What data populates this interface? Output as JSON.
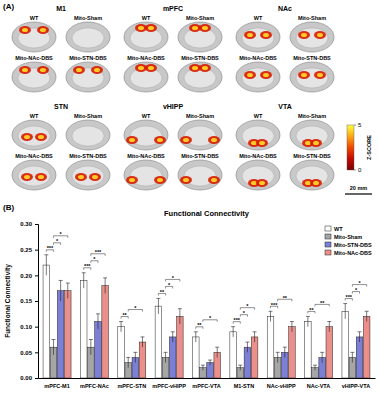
{
  "panel_a": {
    "label": "(A)",
    "regions": [
      "M1",
      "mPFC",
      "NAc",
      "STN",
      "vHIPP",
      "VTA"
    ],
    "groups": [
      "WT",
      "Mito-Sham",
      "Mito-NAc-DBS",
      "Mito-STN-DBS"
    ],
    "scale_bar": "20 mm",
    "colorbar": {
      "title": "Z-SCORE",
      "range": [
        0,
        5
      ],
      "ticks": [
        0,
        5
      ]
    }
  },
  "panel_b": {
    "label": "(B)"
  },
  "chart_data": {
    "type": "bar",
    "title": "Functional Connectivity",
    "y_label": "Functional Connectivity",
    "categories": [
      "mPFC-M1",
      "mPFC-NAc",
      "mPFC-STN",
      "mPFC-vHIPP",
      "mPFC-VTA",
      "M1-STN",
      "NAc-vHIPP",
      "NAc-VTA",
      "vHIPP-VTA"
    ],
    "series": [
      {
        "name": "WT",
        "color": "#ffffff",
        "values": [
          0.22,
          0.19,
          0.1,
          0.14,
          0.08,
          0.09,
          0.12,
          0.11,
          0.13
        ],
        "errors": [
          0.02,
          0.015,
          0.01,
          0.015,
          0.01,
          0.01,
          0.01,
          0.01,
          0.015
        ]
      },
      {
        "name": "Mito-Sham",
        "color": "#a6a6a6",
        "values": [
          0.06,
          0.06,
          0.03,
          0.04,
          0.02,
          0.02,
          0.04,
          0.02,
          0.04
        ],
        "errors": [
          0.015,
          0.015,
          0.01,
          0.01,
          0.005,
          0.005,
          0.01,
          0.005,
          0.01
        ]
      },
      {
        "name": "Mito-STN-DBS",
        "color": "#7b7fd6",
        "values": [
          0.17,
          0.11,
          0.04,
          0.08,
          0.03,
          0.06,
          0.05,
          0.04,
          0.08
        ],
        "errors": [
          0.02,
          0.015,
          0.01,
          0.01,
          0.005,
          0.01,
          0.01,
          0.01,
          0.01
        ]
      },
      {
        "name": "Mito-NAc-DBS",
        "color": "#ea8f8a",
        "values": [
          0.17,
          0.18,
          0.07,
          0.12,
          0.05,
          0.08,
          0.1,
          0.1,
          0.12
        ],
        "errors": [
          0.015,
          0.015,
          0.01,
          0.015,
          0.01,
          0.01,
          0.01,
          0.01,
          0.01
        ]
      }
    ],
    "ylim": [
      0,
      0.3
    ],
    "yticks": [
      {
        "value": 0,
        "label": "0.00"
      },
      {
        "value": 0.05,
        "label": "0.05"
      },
      {
        "value": 0.1,
        "label": "0.10"
      },
      {
        "value": 0.15,
        "label": "0.15"
      },
      {
        "value": 0.2,
        "label": "0.20"
      },
      {
        "value": 0.25,
        "label": "0.25"
      },
      {
        "value": 0.3,
        "label": "0.30"
      }
    ],
    "legend": "upper right",
    "annotations": [
      {
        "category": "mPFC-M1",
        "groups": [
          "WT",
          "Mito-Sham"
        ],
        "label": "***"
      },
      {
        "category": "mPFC-M1",
        "groups": [
          "Mito-Sham",
          "Mito-STN-DBS"
        ],
        "label": "*"
      },
      {
        "category": "mPFC-M1",
        "groups": [
          "Mito-Sham",
          "Mito-NAc-DBS"
        ],
        "label": "*"
      },
      {
        "category": "mPFC-NAc",
        "groups": [
          "WT",
          "Mito-Sham"
        ],
        "label": "***"
      },
      {
        "category": "mPFC-NAc",
        "groups": [
          "Mito-Sham",
          "Mito-STN-DBS"
        ],
        "label": "*"
      },
      {
        "category": "mPFC-NAc",
        "groups": [
          "Mito-Sham",
          "Mito-NAc-DBS"
        ],
        "label": "***"
      },
      {
        "category": "mPFC-STN",
        "groups": [
          "WT",
          "Mito-Sham"
        ],
        "label": "**"
      },
      {
        "category": "mPFC-STN",
        "groups": [
          "Mito-Sham",
          "Mito-NAc-DBS"
        ],
        "label": "*"
      },
      {
        "category": "mPFC-vHIPP",
        "groups": [
          "WT",
          "Mito-Sham"
        ],
        "label": "**"
      },
      {
        "category": "mPFC-vHIPP",
        "groups": [
          "Mito-Sham",
          "Mito-STN-DBS"
        ],
        "label": "*"
      },
      {
        "category": "mPFC-vHIPP",
        "groups": [
          "Mito-Sham",
          "Mito-NAc-DBS"
        ],
        "label": "*"
      },
      {
        "category": "mPFC-VTA",
        "groups": [
          "WT",
          "Mito-Sham"
        ],
        "label": "**"
      },
      {
        "category": "mPFC-VTA",
        "groups": [
          "Mito-Sham",
          "Mito-NAc-DBS"
        ],
        "label": "*"
      },
      {
        "category": "M1-STN",
        "groups": [
          "WT",
          "Mito-Sham"
        ],
        "label": "***"
      },
      {
        "category": "M1-STN",
        "groups": [
          "Mito-Sham",
          "Mito-STN-DBS"
        ],
        "label": "*"
      },
      {
        "category": "M1-STN",
        "groups": [
          "Mito-Sham",
          "Mito-NAc-DBS"
        ],
        "label": "*"
      },
      {
        "category": "NAc-vHIPP",
        "groups": [
          "WT",
          "Mito-Sham"
        ],
        "label": "***"
      },
      {
        "category": "NAc-vHIPP",
        "groups": [
          "Mito-Sham",
          "Mito-NAc-DBS"
        ],
        "label": "**"
      },
      {
        "category": "NAc-VTA",
        "groups": [
          "WT",
          "Mito-Sham"
        ],
        "label": "**"
      },
      {
        "category": "NAc-VTA",
        "groups": [
          "Mito-Sham",
          "Mito-NAc-DBS"
        ],
        "label": "**"
      },
      {
        "category": "vHIPP-VTA",
        "groups": [
          "WT",
          "Mito-Sham"
        ],
        "label": "***"
      },
      {
        "category": "vHIPP-VTA",
        "groups": [
          "Mito-Sham",
          "Mito-STN-DBS"
        ],
        "label": "*"
      },
      {
        "category": "vHIPP-VTA",
        "groups": [
          "Mito-Sham",
          "Mito-NAc-DBS"
        ],
        "label": "*"
      }
    ]
  }
}
